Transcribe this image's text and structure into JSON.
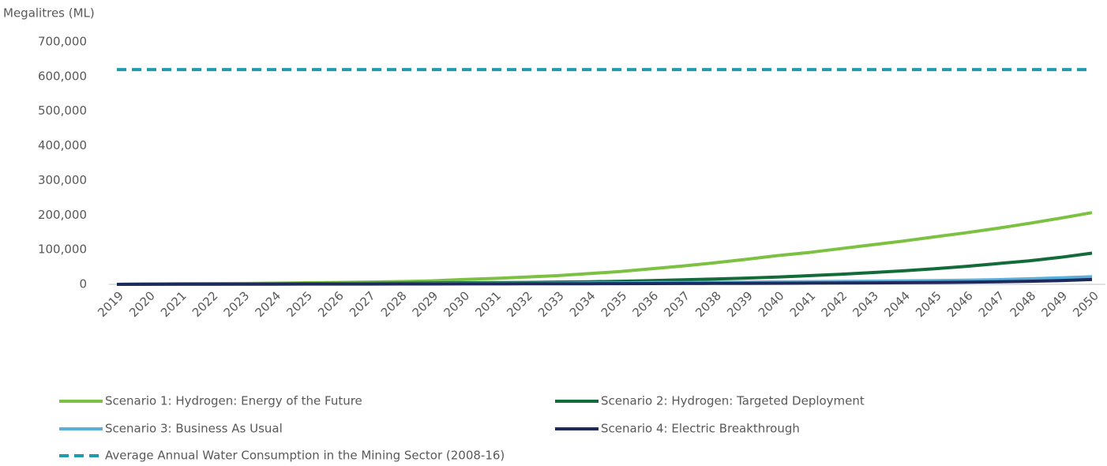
{
  "chart_data": {
    "type": "line",
    "ylabel": "Megalitres (ML)",
    "categories": [
      "2019",
      "2020",
      "2021",
      "2022",
      "2023",
      "2024",
      "2025",
      "2026",
      "2027",
      "2028",
      "2029",
      "2030",
      "2031",
      "2032",
      "2033",
      "2034",
      "2035",
      "2036",
      "2037",
      "2038",
      "2039",
      "2040",
      "2041",
      "2042",
      "2043",
      "2044",
      "2045",
      "2046",
      "2047",
      "2048",
      "2049",
      "2050"
    ],
    "ylim": [
      0,
      700000
    ],
    "yticks": [
      0,
      {
        "value": 100000,
        "label": "100,000"
      },
      {
        "value": 200000,
        "label": "200,000"
      },
      {
        "value": 300000,
        "label": "300,000"
      },
      {
        "value": 400000,
        "label": "400,000"
      },
      {
        "value": 500000,
        "label": "500,000"
      },
      {
        "value": 600000,
        "label": "600,000"
      },
      {
        "value": 700000,
        "label": "700,000"
      }
    ],
    "grid": false,
    "legend": "bottom",
    "series": [
      {
        "name": "Scenario 1: Hydrogen: Energy of the Future",
        "color": "#7dc142",
        "style": "solid",
        "values": [
          0,
          1000,
          1500,
          2000,
          2500,
          3500,
          4500,
          5500,
          6500,
          8000,
          10000,
          14000,
          17000,
          21000,
          25000,
          31000,
          37000,
          45000,
          53000,
          62000,
          72000,
          83000,
          92000,
          103000,
          114000,
          125000,
          137000,
          149000,
          162000,
          176000,
          191000,
          207000
        ]
      },
      {
        "name": "Scenario 2: Hydrogen: Targeted Deployment",
        "color": "#146b3a",
        "style": "solid",
        "values": [
          0,
          500,
          800,
          1000,
          1200,
          1500,
          2000,
          2500,
          3000,
          3500,
          4000,
          4500,
          5000,
          5500,
          6500,
          7500,
          9000,
          11000,
          13000,
          15500,
          18000,
          21000,
          25000,
          29000,
          34000,
          39000,
          45000,
          52000,
          60000,
          68000,
          78000,
          90000
        ]
      },
      {
        "name": "Scenario 3: Business As Usual",
        "color": "#5aafdc",
        "style": "solid",
        "values": [
          0,
          300,
          500,
          700,
          900,
          1100,
          1300,
          1500,
          1700,
          1900,
          2100,
          2400,
          2700,
          3000,
          3400,
          3800,
          4200,
          4700,
          5200,
          5800,
          6400,
          7000,
          7700,
          8400,
          9200,
          10000,
          11000,
          12000,
          13500,
          16000,
          19000,
          22000
        ]
      },
      {
        "name": "Scenario 4: Electric Breakthrough",
        "color": "#1f2a5c",
        "style": "solid",
        "values": [
          0,
          200,
          400,
          500,
          600,
          700,
          800,
          900,
          1000,
          1100,
          1200,
          1300,
          1400,
          1500,
          1700,
          1900,
          2100,
          2300,
          2500,
          2700,
          3000,
          3300,
          3600,
          4000,
          4400,
          4800,
          5500,
          6200,
          7200,
          8800,
          11000,
          14000
        ]
      },
      {
        "name": "Average Annual Water Consumption in the Mining Sector (2008-16)",
        "color": "#1f9bae",
        "style": "dashed",
        "values": [
          620000,
          620000,
          620000,
          620000,
          620000,
          620000,
          620000,
          620000,
          620000,
          620000,
          620000,
          620000,
          620000,
          620000,
          620000,
          620000,
          620000,
          620000,
          620000,
          620000,
          620000,
          620000,
          620000,
          620000,
          620000,
          620000,
          620000,
          620000,
          620000,
          620000,
          620000,
          620000
        ]
      }
    ]
  }
}
